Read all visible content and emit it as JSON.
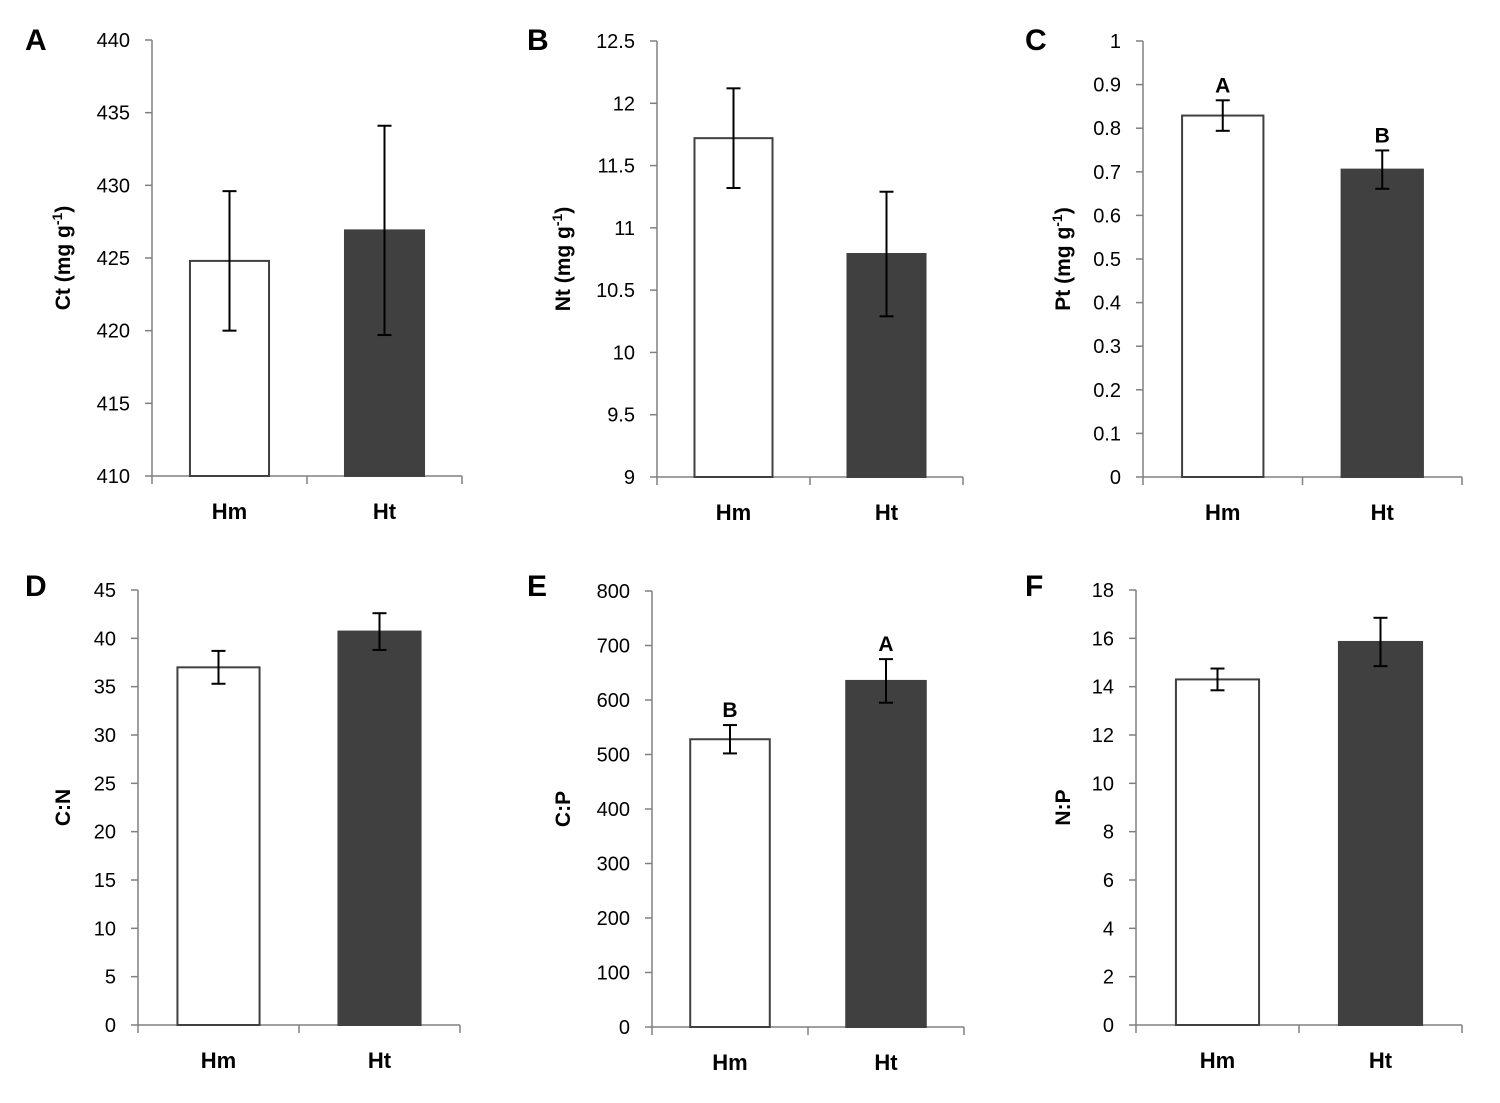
{
  "chart_data": [
    {
      "panel": "A",
      "type": "bar",
      "categories": [
        "Hm",
        "Ht"
      ],
      "values": [
        424.8,
        426.9
      ],
      "errors": [
        4.8,
        7.2
      ],
      "sig_letters": [
        "",
        ""
      ],
      "ylabel": "Ct (mg g",
      "ylabel_sup": "-1",
      "ylabel_tail": ")",
      "ylim": [
        410,
        440
      ],
      "yticks": [
        "410",
        "415",
        "420",
        "425",
        "430",
        "435",
        "440"
      ],
      "bar_colors": [
        "#ffffff",
        "#404040"
      ]
    },
    {
      "panel": "B",
      "type": "bar",
      "categories": [
        "Hm",
        "Ht"
      ],
      "values": [
        11.72,
        10.79
      ],
      "errors": [
        0.4,
        0.5
      ],
      "sig_letters": [
        "",
        ""
      ],
      "ylabel": "Nt (mg g",
      "ylabel_sup": "-1",
      "ylabel_tail": ")",
      "ylim": [
        9,
        12.5
      ],
      "yticks": [
        "9",
        "9.5",
        "10",
        "10.5",
        "11",
        "11.5",
        "12",
        "12.5"
      ],
      "bar_colors": [
        "#ffffff",
        "#404040"
      ]
    },
    {
      "panel": "C",
      "type": "bar",
      "categories": [
        "Hm",
        "Ht"
      ],
      "values": [
        0.829,
        0.705
      ],
      "errors": [
        0.035,
        0.044
      ],
      "sig_letters": [
        "A",
        "B"
      ],
      "ylabel": "Pt (mg g",
      "ylabel_sup": "-1",
      "ylabel_tail": ")",
      "ylim": [
        0,
        1
      ],
      "yticks": [
        "0",
        "0.1",
        "0.2",
        "0.3",
        "0.4",
        "0.5",
        "0.6",
        "0.7",
        "0.8",
        "0.9",
        "1"
      ],
      "bar_colors": [
        "#ffffff",
        "#404040"
      ]
    },
    {
      "panel": "D",
      "type": "bar",
      "categories": [
        "Hm",
        "Ht"
      ],
      "values": [
        37.0,
        40.7
      ],
      "errors": [
        1.7,
        1.9
      ],
      "sig_letters": [
        "",
        ""
      ],
      "ylabel": "C:N",
      "ylabel_sup": "",
      "ylabel_tail": "",
      "ylim": [
        0,
        45
      ],
      "yticks": [
        "0",
        "5",
        "10",
        "15",
        "20",
        "25",
        "30",
        "35",
        "40",
        "45"
      ],
      "bar_colors": [
        "#ffffff",
        "#404040"
      ]
    },
    {
      "panel": "E",
      "type": "bar",
      "categories": [
        "Hm",
        "Ht"
      ],
      "values": [
        528,
        635
      ],
      "errors": [
        26,
        40
      ],
      "sig_letters": [
        "B",
        "A"
      ],
      "ylabel": "C:P",
      "ylabel_sup": "",
      "ylabel_tail": "",
      "ylim": [
        0,
        800
      ],
      "yticks": [
        "0",
        "100",
        "200",
        "300",
        "400",
        "500",
        "600",
        "700",
        "800"
      ],
      "bar_colors": [
        "#ffffff",
        "#404040"
      ]
    },
    {
      "panel": "F",
      "type": "bar",
      "categories": [
        "Hm",
        "Ht"
      ],
      "values": [
        14.3,
        15.85
      ],
      "errors": [
        0.45,
        1.0
      ],
      "sig_letters": [
        "",
        ""
      ],
      "ylabel": "N:P",
      "ylabel_sup": "",
      "ylabel_tail": "",
      "ylim": [
        0,
        18
      ],
      "yticks": [
        "0",
        "2",
        "4",
        "6",
        "8",
        "10",
        "12",
        "14",
        "16",
        "18"
      ],
      "bar_colors": [
        "#ffffff",
        "#404040"
      ]
    }
  ]
}
